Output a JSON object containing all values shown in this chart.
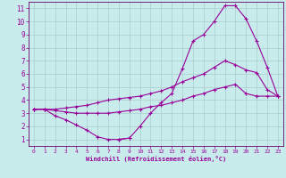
{
  "xlabel": "Windchill (Refroidissement éolien,°C)",
  "background_color": "#c8ecec",
  "plot_bg_color": "#c8ecec",
  "grid_color": "#aacccc",
  "line_color": "#990099",
  "spine_color": "#660066",
  "xlim": [
    -0.5,
    23.5
  ],
  "ylim": [
    0.5,
    11.5
  ],
  "xticks": [
    0,
    1,
    2,
    3,
    4,
    5,
    6,
    7,
    8,
    9,
    10,
    11,
    12,
    13,
    14,
    15,
    16,
    17,
    18,
    19,
    20,
    21,
    22,
    23
  ],
  "yticks": [
    1,
    2,
    3,
    4,
    5,
    6,
    7,
    8,
    9,
    10,
    11
  ],
  "curve1_x": [
    0,
    1,
    2,
    3,
    4,
    5,
    6,
    7,
    8,
    9,
    10,
    11,
    12,
    13,
    14,
    15,
    16,
    17,
    18,
    19,
    20,
    21,
    22,
    23
  ],
  "curve1_y": [
    3.3,
    3.3,
    2.8,
    2.5,
    2.1,
    1.7,
    1.2,
    1.0,
    1.0,
    1.1,
    null,
    null,
    null,
    null,
    null,
    null,
    null,
    null,
    null,
    null,
    null,
    null,
    null,
    null
  ],
  "curve1b_x": [
    8,
    9,
    10,
    11,
    12,
    13,
    14,
    15,
    16,
    17,
    18,
    19,
    20,
    21,
    22,
    23
  ],
  "curve1b_y": [
    1.0,
    1.1,
    2.0,
    3.0,
    3.8,
    4.5,
    6.4,
    8.5,
    9.0,
    10.0,
    11.2,
    11.2,
    10.2,
    8.5,
    6.5,
    4.3
  ],
  "curve2_x": [
    0,
    1,
    2,
    3,
    4,
    5,
    6,
    7,
    8,
    9,
    10,
    11,
    12,
    13,
    14,
    15,
    16,
    17,
    18,
    19,
    20,
    21,
    22,
    23
  ],
  "curve2_y": [
    3.3,
    3.3,
    3.3,
    3.4,
    3.5,
    3.6,
    3.8,
    4.0,
    4.1,
    4.2,
    4.3,
    4.5,
    4.7,
    5.0,
    5.4,
    5.7,
    6.0,
    6.5,
    7.0,
    6.7,
    6.3,
    6.1,
    4.8,
    4.3
  ],
  "curve3_x": [
    0,
    1,
    2,
    3,
    4,
    5,
    6,
    7,
    8,
    9,
    10,
    11,
    12,
    13,
    14,
    15,
    16,
    17,
    18,
    19,
    20,
    21,
    22,
    23
  ],
  "curve3_y": [
    3.3,
    3.3,
    3.2,
    3.1,
    3.0,
    3.0,
    3.0,
    3.0,
    3.1,
    3.2,
    3.3,
    3.5,
    3.6,
    3.8,
    4.0,
    4.3,
    4.5,
    4.8,
    5.0,
    5.2,
    4.5,
    4.3,
    4.3,
    4.3
  ]
}
